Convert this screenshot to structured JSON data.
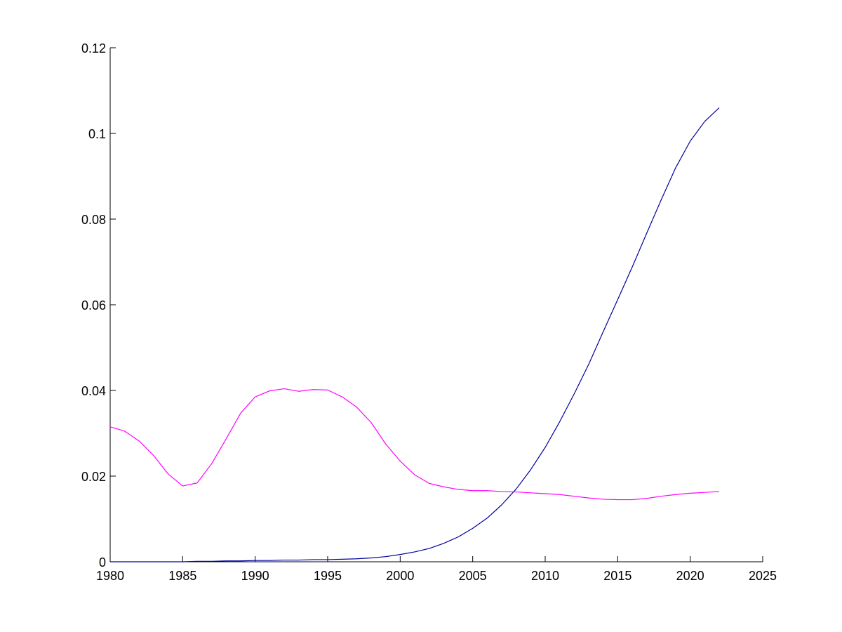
{
  "chart_data": {
    "type": "line",
    "title": "",
    "xlabel": "",
    "ylabel": "",
    "xlim": [
      1980,
      2025
    ],
    "ylim": [
      0,
      0.12
    ],
    "x_ticks": [
      1980,
      1985,
      1990,
      1995,
      2000,
      2005,
      2010,
      2015,
      2020,
      2025
    ],
    "x_tick_labels": [
      "1980",
      "1985",
      "1990",
      "1995",
      "2000",
      "2005",
      "2010",
      "2015",
      "2020",
      "2025"
    ],
    "y_ticks": [
      0,
      0.02,
      0.04,
      0.06,
      0.08,
      0.1,
      0.12
    ],
    "y_tick_labels": [
      "0",
      "0.02",
      "0.04",
      "0.06",
      "0.08",
      "0.1",
      "0.12"
    ],
    "grid": false,
    "legend": "none",
    "x": [
      1980,
      1981,
      1982,
      1983,
      1984,
      1985,
      1986,
      1987,
      1988,
      1989,
      1990,
      1991,
      1992,
      1993,
      1994,
      1995,
      1996,
      1997,
      1998,
      1999,
      2000,
      2001,
      2002,
      2003,
      2004,
      2005,
      2006,
      2007,
      2008,
      2009,
      2010,
      2011,
      2012,
      2013,
      2014,
      2015,
      2016,
      2017,
      2018,
      2019,
      2020,
      2021,
      2022
    ],
    "series": [
      {
        "color": "#0000a0",
        "values": [
          0,
          0,
          0,
          0,
          0,
          0,
          0.0001,
          0.0001,
          0.0002,
          0.0002,
          0.0003,
          0.0003,
          0.0004,
          0.0004,
          0.0005,
          0.0005,
          0.0006,
          0.0007,
          0.0009,
          0.0012,
          0.0017,
          0.0023,
          0.0031,
          0.0043,
          0.0058,
          0.0078,
          0.0102,
          0.0133,
          0.017,
          0.0215,
          0.0267,
          0.0327,
          0.0392,
          0.0461,
          0.0537,
          0.0612,
          0.0688,
          0.0767,
          0.0845,
          0.092,
          0.0982,
          0.1028,
          0.106
        ]
      },
      {
        "color": "#ff00ff",
        "values": [
          0.0315,
          0.0305,
          0.0282,
          0.0248,
          0.0205,
          0.0177,
          0.0184,
          0.0229,
          0.0287,
          0.0347,
          0.0385,
          0.0399,
          0.0404,
          0.0398,
          0.0402,
          0.0401,
          0.0385,
          0.0361,
          0.0325,
          0.0275,
          0.0235,
          0.0203,
          0.0183,
          0.0175,
          0.0169,
          0.0166,
          0.0166,
          0.0164,
          0.0163,
          0.0161,
          0.0159,
          0.0157,
          0.0153,
          0.0149,
          0.0146,
          0.0145,
          0.0145,
          0.0148,
          0.0153,
          0.0157,
          0.016,
          0.0162,
          0.0164
        ]
      }
    ]
  }
}
